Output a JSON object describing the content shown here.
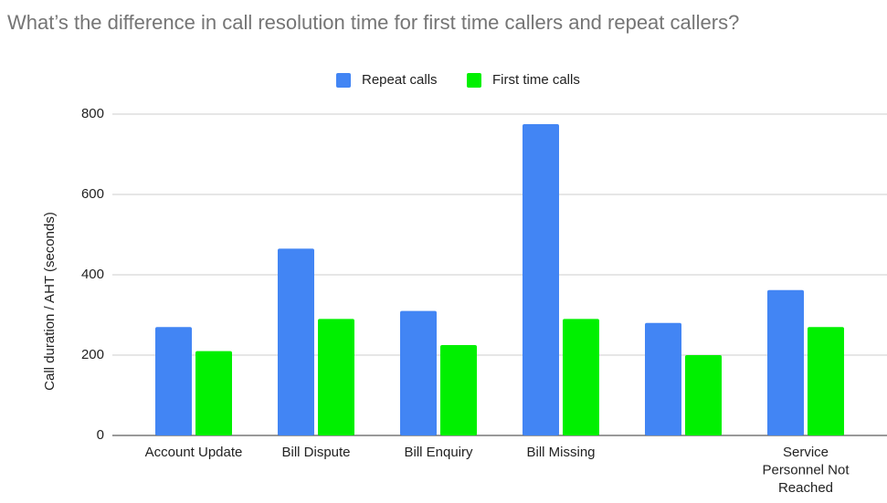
{
  "chart_data": {
    "type": "bar",
    "title": "What’s the difference in call resolution time for first time callers and repeat callers?",
    "y_label": "Call duration / AHT (seconds)",
    "categories": [
      "Account Update",
      "Bill Dispute",
      "Bill Enquiry",
      "Bill Missing",
      null,
      "Service Personnel Not Reached"
    ],
    "series": [
      {
        "name": "Repeat calls",
        "color": "#4285f4",
        "values": [
          270,
          465,
          310,
          775,
          280,
          362
        ]
      },
      {
        "name": "First time calls",
        "color": "#00f000",
        "values": [
          210,
          290,
          225,
          290,
          200,
          270
        ]
      }
    ],
    "ylim": [
      0,
      800
    ],
    "yticks": [
      0,
      200,
      400,
      600,
      800
    ],
    "grid": true,
    "legend": "top"
  }
}
